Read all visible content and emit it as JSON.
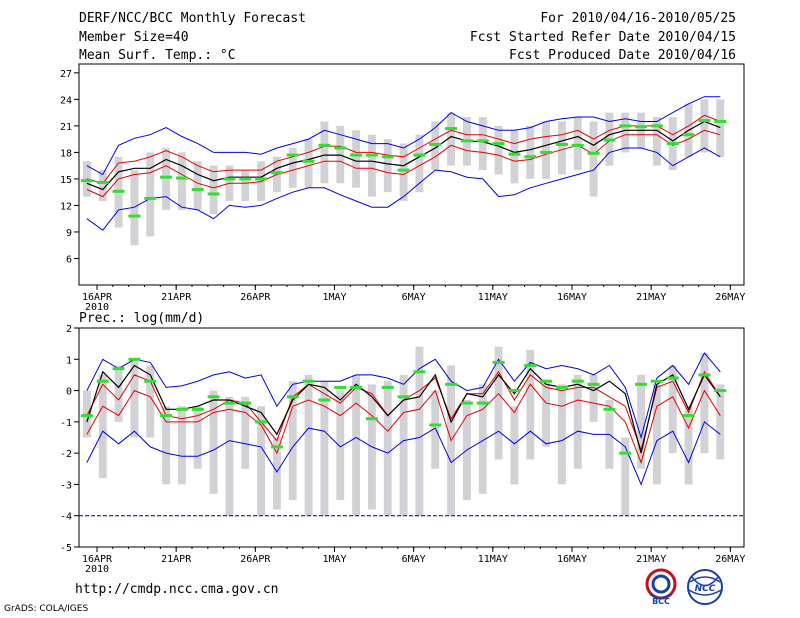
{
  "header": {
    "title": "DERF/NCC/BCC Monthly Forecast",
    "member": "Member Size=40",
    "variable": "Mean Surf. Temp.: °C",
    "period": "For 2010/04/16-2010/05/25",
    "started": "Fcst Started Refer Date 2010/04/15",
    "produced": "Fcst Produced Date 2010/04/16"
  },
  "footer": {
    "url": "http://cmdp.ncc.cma.gov.cn",
    "credit": "GrADS: COLA/IGES"
  },
  "logos": {
    "bcc": "BCC",
    "ncc": "NCC"
  },
  "colors": {
    "max": "#0000e6",
    "pct": "#e60000",
    "mean": "#000000",
    "obs": "#33dd33",
    "box": "#d2d2d6",
    "floor": "#000080"
  },
  "chart_data": [
    {
      "type": "line",
      "title": "Mean Surf. Temp.: °C",
      "ylim": [
        3,
        28
      ],
      "yticks": [
        6,
        9,
        12,
        15,
        18,
        21,
        24,
        27
      ],
      "xticks": [
        {
          "day": 0,
          "label": "16APR"
        },
        {
          "day": 5,
          "label": "21APR"
        },
        {
          "day": 10,
          "label": "26APR"
        },
        {
          "day": 15,
          "label": "1MAY"
        },
        {
          "day": 20,
          "label": "6MAY"
        },
        {
          "day": 25,
          "label": "11MAY"
        },
        {
          "day": 30,
          "label": "16MAY"
        },
        {
          "day": 35,
          "label": "21MAY"
        },
        {
          "day": 40,
          "label": "26MAY"
        }
      ],
      "year_label": "2010",
      "max": [
        16.5,
        15.5,
        18.8,
        19.6,
        20.0,
        20.8,
        19.8,
        19.0,
        18.0,
        18.0,
        18.0,
        17.8,
        18.5,
        19.0,
        19.5,
        20.5,
        20.0,
        19.5,
        19.0,
        19.0,
        18.5,
        19.5,
        20.8,
        22.5,
        21.5,
        21.0,
        20.5,
        20.5,
        20.8,
        21.5,
        21.8,
        22.0,
        22.0,
        21.5,
        21.8,
        21.5,
        21.5,
        22.5,
        23.5,
        24.3,
        24.3
      ],
      "p_hi": [
        15.0,
        14.5,
        16.8,
        17.0,
        17.5,
        18.2,
        17.5,
        16.5,
        15.8,
        16.0,
        16.0,
        16.0,
        17.0,
        17.5,
        18.0,
        18.7,
        18.7,
        18.0,
        18.0,
        17.7,
        17.5,
        18.5,
        19.5,
        20.5,
        20.0,
        20.0,
        19.5,
        19.0,
        19.5,
        19.8,
        20.0,
        20.5,
        19.5,
        20.5,
        21.0,
        21.0,
        21.0,
        20.0,
        21.0,
        22.2,
        21.5
      ],
      "mean": [
        14.5,
        13.8,
        15.8,
        16.2,
        16.2,
        17.2,
        16.5,
        15.5,
        14.8,
        15.2,
        15.2,
        15.2,
        16.2,
        16.8,
        17.2,
        17.7,
        17.7,
        17.0,
        17.0,
        16.7,
        16.5,
        17.5,
        18.5,
        19.8,
        19.3,
        19.2,
        18.7,
        18.0,
        18.3,
        18.8,
        19.3,
        19.8,
        18.8,
        20.0,
        20.5,
        20.5,
        20.5,
        19.3,
        20.5,
        21.5,
        20.8
      ],
      "p_lo": [
        13.8,
        13.0,
        15.0,
        15.5,
        15.7,
        16.5,
        15.5,
        14.5,
        14.0,
        14.5,
        14.5,
        14.7,
        15.5,
        16.0,
        16.5,
        17.0,
        17.0,
        16.2,
        16.2,
        15.7,
        15.5,
        16.5,
        17.5,
        18.8,
        18.2,
        18.0,
        17.7,
        17.0,
        17.2,
        17.8,
        18.3,
        18.8,
        17.8,
        19.3,
        20.0,
        20.0,
        20.0,
        18.8,
        19.5,
        20.5,
        20.0
      ],
      "min": [
        10.5,
        9.2,
        11.5,
        11.8,
        12.8,
        13.0,
        11.8,
        11.5,
        10.5,
        12.0,
        11.8,
        12.0,
        12.8,
        13.5,
        14.0,
        14.0,
        13.2,
        12.5,
        11.8,
        11.8,
        13.0,
        14.5,
        16.0,
        15.8,
        15.2,
        15.0,
        13.0,
        13.2,
        14.0,
        14.5,
        15.0,
        15.5,
        16.0,
        18.0,
        18.5,
        18.5,
        18.0,
        16.5,
        17.5,
        18.5,
        17.5
      ],
      "obs": [
        14.8,
        14.6,
        13.6,
        10.8,
        12.8,
        15.2,
        15.1,
        13.8,
        13.3,
        15.0,
        15.0,
        15.0,
        15.7,
        17.7,
        17.0,
        18.8,
        18.5,
        17.7,
        17.7,
        17.5,
        16.0,
        17.7,
        18.9,
        20.7,
        19.3,
        19.3,
        19.0,
        17.8,
        17.5,
        18.0,
        18.9,
        18.8,
        17.9,
        19.4,
        21.0,
        20.9,
        21.0,
        19.0,
        20.0,
        21.6,
        21.5
      ],
      "box": [
        [
          13,
          17
        ],
        [
          12.5,
          16
        ],
        [
          9.5,
          17.5
        ],
        [
          7.5,
          16
        ],
        [
          8.5,
          18
        ],
        [
          11.5,
          18.5
        ],
        [
          11.5,
          18
        ],
        [
          11.5,
          17
        ],
        [
          11,
          16.5
        ],
        [
          12.5,
          16.5
        ],
        [
          12.5,
          16
        ],
        [
          12.5,
          17
        ],
        [
          13.5,
          17.5
        ],
        [
          14,
          18.5
        ],
        [
          14,
          19.5
        ],
        [
          14.5,
          21.5
        ],
        [
          14.5,
          21
        ],
        [
          14,
          20.5
        ],
        [
          13,
          20
        ],
        [
          13.5,
          19.5
        ],
        [
          12.5,
          19
        ],
        [
          13.5,
          20
        ],
        [
          16,
          21.5
        ],
        [
          16.5,
          22.5
        ],
        [
          16.5,
          22
        ],
        [
          16,
          22
        ],
        [
          15.5,
          21
        ],
        [
          14.5,
          20.5
        ],
        [
          15,
          21
        ],
        [
          15,
          21.5
        ],
        [
          15.5,
          21.5
        ],
        [
          16,
          22
        ],
        [
          13,
          21.5
        ],
        [
          16.5,
          22.5
        ],
        [
          18,
          22.5
        ],
        [
          18.5,
          22.5
        ],
        [
          16.5,
          22
        ],
        [
          16,
          22
        ],
        [
          17.5,
          23.5
        ],
        [
          18,
          24
        ],
        [
          17.5,
          24
        ]
      ]
    },
    {
      "type": "line",
      "title": "Prec.: log(mm/d)",
      "ylim": [
        -5,
        2
      ],
      "yticks": [
        -5,
        -4,
        -3,
        -2,
        -1,
        0,
        1,
        2
      ],
      "xticks": [
        {
          "day": 0,
          "label": "16APR"
        },
        {
          "day": 5,
          "label": "21APR"
        },
        {
          "day": 10,
          "label": "26APR"
        },
        {
          "day": 15,
          "label": "1MAY"
        },
        {
          "day": 20,
          "label": "6MAY"
        },
        {
          "day": 25,
          "label": "11MAY"
        },
        {
          "day": 30,
          "label": "16MAY"
        },
        {
          "day": 35,
          "label": "21MAY"
        },
        {
          "day": 40,
          "label": "26MAY"
        }
      ],
      "year_label": "2010",
      "floor": -4,
      "max": [
        0.0,
        1.0,
        0.7,
        1.0,
        0.9,
        0.1,
        0.15,
        0.3,
        0.5,
        0.6,
        0.4,
        0.5,
        -0.5,
        0.2,
        0.3,
        0.3,
        0.3,
        0.5,
        0.5,
        0.4,
        0.2,
        0.7,
        1.0,
        0.3,
        0.0,
        0.1,
        1.0,
        0.3,
        0.9,
        0.7,
        0.8,
        0.7,
        0.5,
        0.8,
        0.1,
        -1.5,
        0.4,
        0.8,
        0.2,
        1.2,
        0.6
      ],
      "p_hi": [
        -0.8,
        0.2,
        -0.3,
        0.5,
        0.3,
        -0.8,
        -0.9,
        -0.8,
        -0.6,
        -0.3,
        -0.4,
        -1.0,
        -1.6,
        -0.2,
        0.2,
        -0.1,
        -0.4,
        0.1,
        -0.1,
        -0.8,
        -0.3,
        0.0,
        0.4,
        -0.9,
        -0.1,
        -0.1,
        0.6,
        -0.3,
        0.5,
        0.1,
        0.0,
        0.1,
        0.1,
        -0.2,
        -0.5,
        -1.9,
        0.1,
        0.3,
        -0.7,
        0.6,
        -0.2
      ],
      "mean": [
        -1.0,
        0.6,
        0.1,
        0.8,
        0.5,
        -0.6,
        -0.6,
        -0.5,
        -0.3,
        -0.3,
        -0.5,
        -0.7,
        -1.4,
        -0.3,
        0.2,
        0.1,
        -0.3,
        0.2,
        -0.2,
        -0.8,
        -0.3,
        -0.2,
        0.5,
        -1.0,
        -0.1,
        -0.2,
        0.5,
        -0.1,
        0.7,
        0.2,
        0.1,
        0.2,
        0.0,
        0.3,
        -0.1,
        -2.0,
        0.2,
        0.5,
        -0.6,
        0.5,
        -0.2
      ],
      "p_lo": [
        -1.4,
        -0.5,
        -0.8,
        0.0,
        -0.2,
        -1.0,
        -1.0,
        -1.0,
        -0.7,
        -0.6,
        -0.7,
        -1.1,
        -2.0,
        -0.5,
        -0.3,
        -0.5,
        -0.8,
        -0.4,
        -0.8,
        -1.3,
        -0.7,
        -0.6,
        0.0,
        -1.6,
        -0.8,
        -0.6,
        -0.1,
        -0.7,
        0.2,
        -0.4,
        -0.5,
        -0.3,
        -0.4,
        -0.5,
        -1.0,
        -2.3,
        -0.5,
        -0.2,
        -1.2,
        0.0,
        -0.8
      ],
      "min": [
        -2.3,
        -1.3,
        -1.7,
        -1.3,
        -1.8,
        -2.0,
        -2.1,
        -2.1,
        -1.9,
        -1.6,
        -1.7,
        -1.8,
        -2.6,
        -1.8,
        -1.2,
        -1.3,
        -1.8,
        -1.5,
        -1.8,
        -2.0,
        -1.6,
        -1.5,
        -1.2,
        -2.3,
        -1.9,
        -1.6,
        -1.3,
        -1.7,
        -1.3,
        -1.7,
        -1.6,
        -1.3,
        -1.4,
        -1.4,
        -1.8,
        -3.0,
        -1.6,
        -1.3,
        -2.3,
        -1.0,
        -1.4
      ],
      "obs": [
        -0.8,
        0.3,
        0.7,
        1.0,
        0.3,
        -0.8,
        -0.6,
        -0.6,
        -0.2,
        -0.4,
        -0.4,
        -1.0,
        -1.8,
        -0.2,
        0.3,
        -0.3,
        0.1,
        0.1,
        -0.9,
        0.1,
        -0.2,
        0.6,
        -1.1,
        0.2,
        -0.4,
        -0.4,
        0.9,
        0.0,
        0.8,
        0.3,
        0.1,
        0.3,
        0.2,
        -0.6,
        -2.0,
        0.2,
        0.3,
        0.4,
        -0.8,
        0.5,
        0.0
      ],
      "box": [
        [
          -1.5,
          0.0
        ],
        [
          -2.8,
          0.5
        ],
        [
          -1.0,
          0.8
        ],
        [
          -1.5,
          1.0
        ],
        [
          -1.5,
          0.8
        ],
        [
          -3.0,
          -0.5
        ],
        [
          -3.0,
          -0.5
        ],
        [
          -2.5,
          -0.5
        ],
        [
          -3.3,
          0.0
        ],
        [
          -4.0,
          -0.2
        ],
        [
          -2.5,
          -0.2
        ],
        [
          -4.0,
          -0.5
        ],
        [
          -3.8,
          -1.5
        ],
        [
          -3.5,
          0.3
        ],
        [
          -4.0,
          0.5
        ],
        [
          -4.0,
          0.3
        ],
        [
          -3.5,
          0.0
        ],
        [
          -4.0,
          0.5
        ],
        [
          -3.8,
          0.2
        ],
        [
          -4.0,
          0.3
        ],
        [
          -4.0,
          0.5
        ],
        [
          -4.0,
          1.4
        ],
        [
          -2.5,
          0.0
        ],
        [
          -4.0,
          0.8
        ],
        [
          -3.5,
          -0.3
        ],
        [
          -3.3,
          0.2
        ],
        [
          -2.2,
          1.4
        ],
        [
          -3.0,
          -0.5
        ],
        [
          -2.2,
          1.3
        ],
        [
          -1.8,
          0.3
        ],
        [
          -3.0,
          0.2
        ],
        [
          -2.5,
          0.5
        ],
        [
          -1.0,
          0.5
        ],
        [
          -2.5,
          -0.3
        ],
        [
          -4.0,
          -1.5
        ],
        [
          -2.5,
          0.5
        ],
        [
          -3.0,
          0.2
        ],
        [
          -2.0,
          0.8
        ],
        [
          -3.0,
          -0.5
        ],
        [
          -2.0,
          1.2
        ],
        [
          -2.2,
          0.2
        ]
      ]
    }
  ]
}
